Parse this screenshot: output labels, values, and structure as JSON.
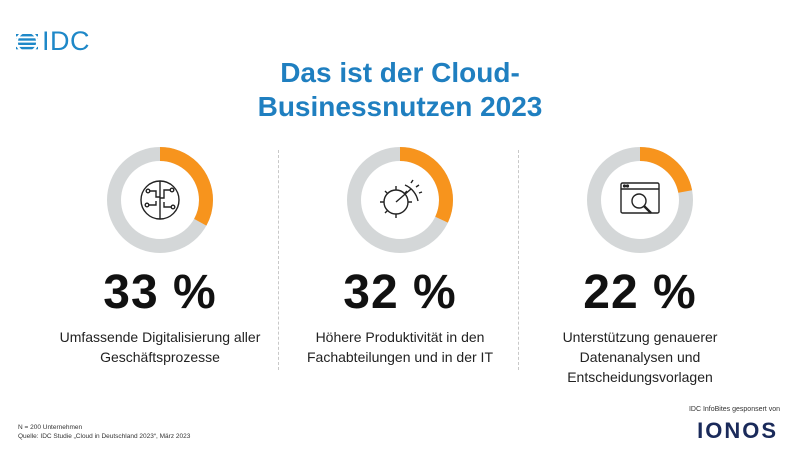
{
  "brand": {
    "logo_text": "IDC",
    "accent": "#1e88c8"
  },
  "title": {
    "line1": "Das ist der Cloud-",
    "line2": "Businessnutzen 2023",
    "color": "#1f7fc0"
  },
  "colors": {
    "filled": "#f7941d",
    "track": "#d4d7d8",
    "icon": "#222222"
  },
  "chart_data": {
    "type": "pie",
    "items": [
      {
        "value": 33,
        "value_label": "33 %",
        "icon": "circuit-brain-icon",
        "label_lines": [
          "Umfassende Digitalisierung aller",
          "Geschäftsprozesse"
        ]
      },
      {
        "value": 32,
        "value_label": "32 %",
        "icon": "gear-gauge-icon",
        "label_lines": [
          "Höhere Produktivität in den",
          "Fachabteilungen und in der IT"
        ]
      },
      {
        "value": 22,
        "value_label": "22 %",
        "icon": "magnifier-window-icon",
        "label_lines": [
          "Unterstützung genauerer",
          "Datenanalysen und",
          "Entscheidungsvorlagen"
        ]
      }
    ]
  },
  "footer": {
    "note_line1": "N = 200 Unternehmen",
    "note_line2": "Quelle: IDC Studie „Cloud in Deutschland 2023“, März 2023",
    "sponsor_text": "IDC InfoBites gesponsert von",
    "sponsor_logo": "IONOS"
  }
}
